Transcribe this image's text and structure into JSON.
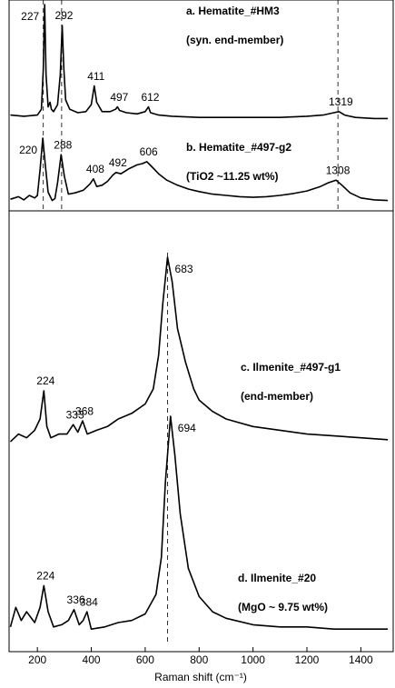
{
  "chart_data": {
    "type": "line",
    "x_label": "Raman shift (cm⁻¹)",
    "xlim": [
      95,
      1520
    ],
    "xticks": [
      200,
      400,
      600,
      800,
      1000,
      1200,
      1400
    ],
    "series": [
      {
        "name": "a. Hematite_#HM3",
        "note": "(syn. end-member)",
        "color": "#000000",
        "peak_labels": [
          227,
          292,
          411,
          497,
          612,
          1319
        ],
        "x": [
          100,
          150,
          200,
          215,
          222,
          227,
          232,
          240,
          247,
          252,
          260,
          275,
          285,
          292,
          298,
          305,
          320,
          350,
          380,
          400,
          411,
          420,
          440,
          470,
          490,
          497,
          505,
          530,
          570,
          600,
          612,
          620,
          650,
          700,
          800,
          900,
          1000,
          1100,
          1200,
          1260,
          1300,
          1319,
          1340,
          1380,
          1450,
          1500
        ],
        "values": [
          5,
          4,
          5,
          10,
          45,
          100,
          40,
          12,
          16,
          10,
          8,
          14,
          40,
          82,
          45,
          18,
          10,
          7,
          8,
          14,
          30,
          16,
          8,
          8,
          10,
          12,
          9,
          7,
          6,
          8,
          12,
          7,
          5,
          4,
          3,
          3,
          3,
          3,
          4,
          5,
          7,
          8,
          5,
          3,
          2,
          2
        ]
      },
      {
        "name": "b. Hematite_#497-g2",
        "note": "(TiO2 ~11.25 wt%)",
        "color": "#000000",
        "peak_labels": [
          220,
          288,
          408,
          492,
          606,
          1308
        ],
        "x": [
          100,
          130,
          150,
          170,
          190,
          200,
          210,
          220,
          230,
          240,
          255,
          265,
          275,
          288,
          300,
          315,
          340,
          370,
          395,
          408,
          420,
          440,
          460,
          480,
          492,
          510,
          540,
          570,
          590,
          606,
          625,
          650,
          680,
          720,
          760,
          800,
          850,
          900,
          950,
          1000,
          1050,
          1100,
          1150,
          1200,
          1250,
          1280,
          1308,
          1330,
          1360,
          1400,
          1450,
          1500
        ],
        "values": [
          4,
          8,
          3,
          10,
          6,
          10,
          50,
          100,
          55,
          15,
          2,
          5,
          30,
          74,
          40,
          12,
          14,
          18,
          28,
          36,
          24,
          26,
          32,
          42,
          46,
          44,
          52,
          58,
          60,
          63,
          55,
          44,
          34,
          26,
          20,
          16,
          12,
          10,
          8,
          7,
          8,
          10,
          13,
          17,
          24,
          30,
          34,
          26,
          14,
          6,
          3,
          2
        ]
      },
      {
        "name": "c. Ilmenite_#497-g1",
        "note": "(end-member)",
        "color": "#000000",
        "peak_labels": [
          224,
          333,
          368,
          683
        ],
        "x": [
          100,
          130,
          160,
          190,
          210,
          224,
          235,
          250,
          280,
          310,
          333,
          350,
          368,
          385,
          420,
          460,
          500,
          550,
          600,
          630,
          650,
          665,
          683,
          700,
          720,
          750,
          780,
          800,
          850,
          900,
          1000,
          1100,
          1200,
          1300,
          1400,
          1500
        ],
        "values": [
          2,
          6,
          4,
          8,
          14,
          29,
          10,
          4,
          6,
          6,
          11,
          7,
          13,
          6,
          8,
          10,
          14,
          17,
          22,
          30,
          48,
          75,
          100,
          87,
          62,
          44,
          30,
          24,
          18,
          14,
          10,
          8,
          6,
          5,
          4,
          3
        ]
      },
      {
        "name": "d. Ilmenite_#20",
        "note": "(MgO ~ 9.75 wt%)",
        "color": "#000000",
        "peak_labels": [
          224,
          336,
          384,
          694
        ],
        "x": [
          100,
          120,
          140,
          160,
          190,
          210,
          224,
          240,
          260,
          290,
          315,
          336,
          355,
          370,
          384,
          400,
          450,
          500,
          550,
          600,
          640,
          660,
          675,
          694,
          710,
          730,
          760,
          800,
          850,
          900,
          1000,
          1100,
          1200,
          1300,
          1400,
          1500
        ],
        "values": [
          3,
          12,
          6,
          10,
          5,
          12,
          22,
          10,
          3,
          4,
          6,
          11,
          4,
          6,
          10,
          2,
          3,
          5,
          6,
          9,
          18,
          35,
          70,
          100,
          82,
          55,
          30,
          17,
          10,
          7,
          4,
          3,
          3,
          2,
          2,
          2
        ]
      }
    ],
    "vlines": [
      {
        "x": 222,
        "series": [
          0,
          1
        ]
      },
      {
        "x": 290,
        "series": [
          0,
          1
        ]
      },
      {
        "x": 1315,
        "series": [
          0,
          1
        ]
      },
      {
        "x": 683,
        "series": [
          2,
          3
        ]
      }
    ]
  }
}
